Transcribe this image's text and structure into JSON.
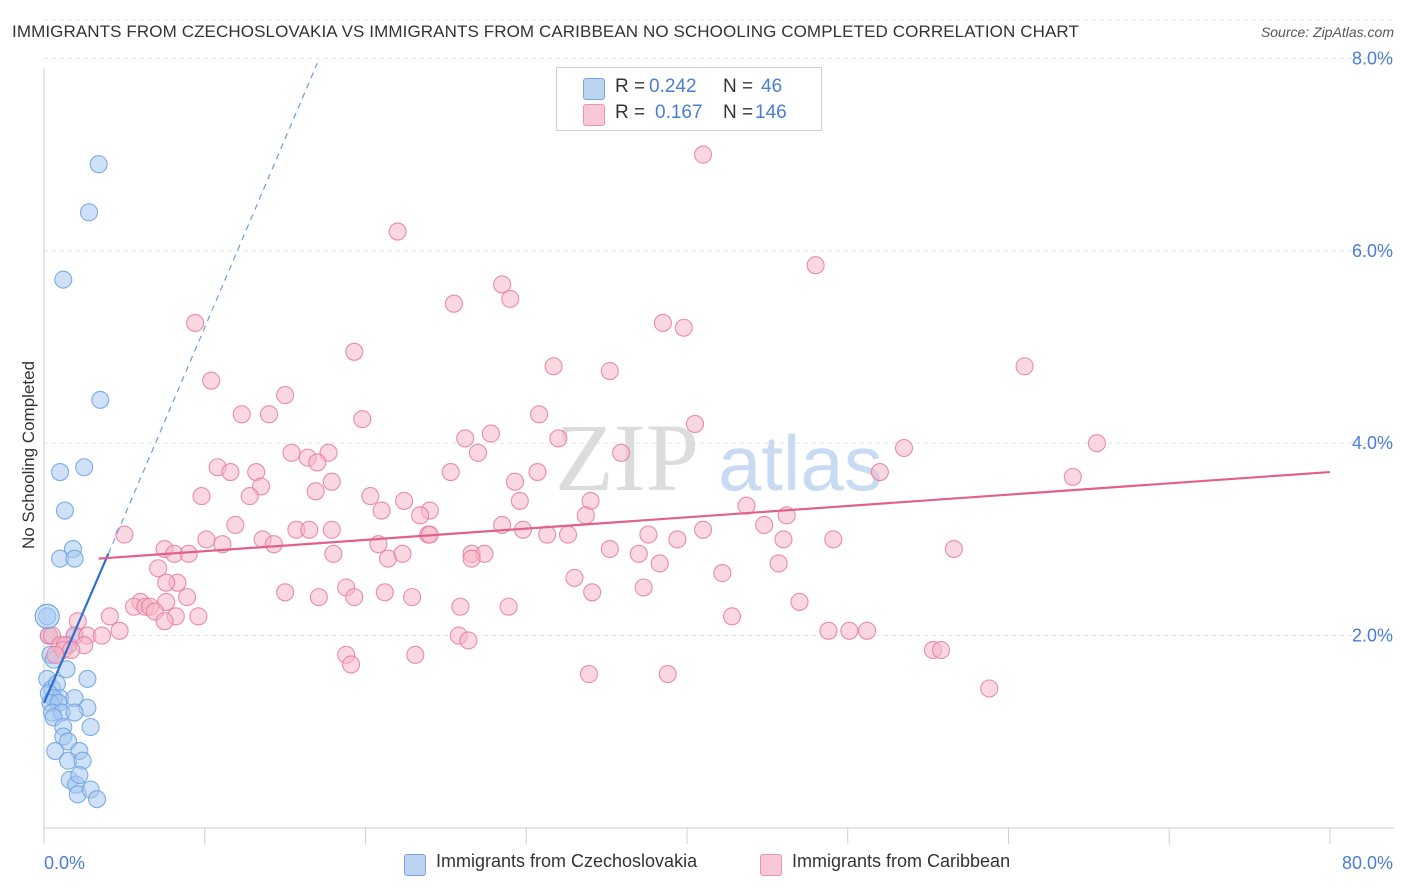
{
  "title": "IMMIGRANTS FROM CZECHOSLOVAKIA VS IMMIGRANTS FROM CARIBBEAN NO SCHOOLING COMPLETED CORRELATION CHART",
  "source": "Source: ZipAtlas.com",
  "watermark": {
    "zip": "ZIP",
    "atlas": "atlas"
  },
  "legend": {
    "rows": [
      {
        "r_label": "R =",
        "r_value": "0.242",
        "n_label": "N =",
        "n_value": "46",
        "color": "#a8c8f0"
      },
      {
        "r_label": "R =",
        "r_value": "0.167",
        "n_label": "N =",
        "n_value": "146",
        "color": "#f7b6c8"
      }
    ]
  },
  "bottom_legend": [
    {
      "label": "Immigrants from Czechoslovakia",
      "color": "#a8c8f0"
    },
    {
      "label": "Immigrants from Caribbean",
      "color": "#f7b6c8"
    }
  ],
  "chart_data": {
    "type": "scatter",
    "ylabel": "No Schooling Completed",
    "xlim": [
      0,
      80
    ],
    "ylim": [
      0,
      8.4
    ],
    "x_tick_labels": [
      {
        "value": 0,
        "label": "0.0%"
      },
      {
        "value": 80,
        "label": "80.0%"
      }
    ],
    "y_tick_labels": [
      {
        "value": 2,
        "label": "2.0%"
      },
      {
        "value": 4,
        "label": "4.0%"
      },
      {
        "value": 6,
        "label": "6.0%"
      },
      {
        "value": 8,
        "label": "8.0%"
      }
    ],
    "grid": "horizontal dashed",
    "series": [
      {
        "name": "Immigrants from Czechoslovakia",
        "color": "#6aa0e0",
        "fill": "#a8c8f0",
        "trend": {
          "x": [
            0,
            4.0
          ],
          "y": [
            1.3,
            2.85
          ],
          "dashed_extension": [
            4.0,
            17.0
          ],
          "dashed_y": [
            2.85,
            7.95
          ],
          "color": "#2f6fd0"
        },
        "points": [
          [
            3.4,
            6.9
          ],
          [
            2.8,
            6.4
          ],
          [
            1.2,
            5.7
          ],
          [
            3.5,
            4.45
          ],
          [
            1.0,
            3.7
          ],
          [
            2.5,
            3.75
          ],
          [
            1.3,
            3.3
          ],
          [
            1.8,
            2.9
          ],
          [
            1.0,
            2.8
          ],
          [
            1.9,
            2.8
          ],
          [
            0.2,
            2.2
          ],
          [
            0.3,
            2.0
          ],
          [
            1.9,
            2.0
          ],
          [
            1.5,
            1.9
          ],
          [
            0.4,
            1.8
          ],
          [
            0.6,
            1.75
          ],
          [
            0.2,
            1.55
          ],
          [
            1.4,
            1.65
          ],
          [
            2.7,
            1.55
          ],
          [
            0.5,
            1.45
          ],
          [
            0.8,
            1.5
          ],
          [
            0.3,
            1.4
          ],
          [
            1.0,
            1.35
          ],
          [
            0.6,
            1.35
          ],
          [
            1.9,
            1.35
          ],
          [
            0.4,
            1.3
          ],
          [
            0.9,
            1.3
          ],
          [
            2.7,
            1.25
          ],
          [
            0.5,
            1.2
          ],
          [
            1.1,
            1.2
          ],
          [
            1.9,
            1.2
          ],
          [
            0.6,
            1.15
          ],
          [
            1.2,
            1.05
          ],
          [
            2.9,
            1.05
          ],
          [
            1.2,
            0.95
          ],
          [
            1.5,
            0.9
          ],
          [
            2.2,
            0.8
          ],
          [
            0.7,
            0.8
          ],
          [
            1.5,
            0.7
          ],
          [
            2.4,
            0.7
          ],
          [
            1.6,
            0.5
          ],
          [
            2.0,
            0.45
          ],
          [
            2.1,
            0.35
          ],
          [
            2.9,
            0.4
          ],
          [
            3.3,
            0.3
          ],
          [
            2.2,
            0.55
          ]
        ]
      },
      {
        "name": "Immigrants from Caribbean",
        "color": "#e57a9c",
        "fill": "#f7b6c8",
        "trend": {
          "x": [
            3.4,
            80
          ],
          "y": [
            2.8,
            3.7
          ],
          "color": "#e0618d"
        },
        "points": [
          [
            41.0,
            7.0
          ],
          [
            22.0,
            6.2
          ],
          [
            48.0,
            5.85
          ],
          [
            28.5,
            5.65
          ],
          [
            29.0,
            5.5
          ],
          [
            25.5,
            5.45
          ],
          [
            9.4,
            5.25
          ],
          [
            38.5,
            5.25
          ],
          [
            39.8,
            5.2
          ],
          [
            19.3,
            4.95
          ],
          [
            31.7,
            4.8
          ],
          [
            35.2,
            4.75
          ],
          [
            61.0,
            4.8
          ],
          [
            10.4,
            4.65
          ],
          [
            15.0,
            4.5
          ],
          [
            12.3,
            4.3
          ],
          [
            14.0,
            4.3
          ],
          [
            19.8,
            4.25
          ],
          [
            30.8,
            4.3
          ],
          [
            40.5,
            4.2
          ],
          [
            27.8,
            4.1
          ],
          [
            26.2,
            4.05
          ],
          [
            32.0,
            4.05
          ],
          [
            65.5,
            4.0
          ],
          [
            53.5,
            3.95
          ],
          [
            15.4,
            3.9
          ],
          [
            17.7,
            3.9
          ],
          [
            16.4,
            3.85
          ],
          [
            35.9,
            3.9
          ],
          [
            27.0,
            3.9
          ],
          [
            17.0,
            3.8
          ],
          [
            10.8,
            3.75
          ],
          [
            11.6,
            3.7
          ],
          [
            13.2,
            3.7
          ],
          [
            25.3,
            3.7
          ],
          [
            30.7,
            3.7
          ],
          [
            52.0,
            3.7
          ],
          [
            64.0,
            3.65
          ],
          [
            17.9,
            3.6
          ],
          [
            29.3,
            3.6
          ],
          [
            13.5,
            3.55
          ],
          [
            16.9,
            3.5
          ],
          [
            12.8,
            3.45
          ],
          [
            9.8,
            3.45
          ],
          [
            20.3,
            3.45
          ],
          [
            22.4,
            3.4
          ],
          [
            29.6,
            3.4
          ],
          [
            34.0,
            3.4
          ],
          [
            43.7,
            3.35
          ],
          [
            21.0,
            3.3
          ],
          [
            24.0,
            3.3
          ],
          [
            23.4,
            3.25
          ],
          [
            33.7,
            3.25
          ],
          [
            46.2,
            3.25
          ],
          [
            11.9,
            3.15
          ],
          [
            17.9,
            3.1
          ],
          [
            15.7,
            3.1
          ],
          [
            16.5,
            3.1
          ],
          [
            28.5,
            3.15
          ],
          [
            29.8,
            3.1
          ],
          [
            41.0,
            3.1
          ],
          [
            44.8,
            3.15
          ],
          [
            31.3,
            3.05
          ],
          [
            32.6,
            3.05
          ],
          [
            37.6,
            3.05
          ],
          [
            39.4,
            3.0
          ],
          [
            13.6,
            3.0
          ],
          [
            5.0,
            3.05
          ],
          [
            10.1,
            3.0
          ],
          [
            14.3,
            2.95
          ],
          [
            20.8,
            2.95
          ],
          [
            23.9,
            3.05
          ],
          [
            24.0,
            3.05
          ],
          [
            46.0,
            3.0
          ],
          [
            49.1,
            3.0
          ],
          [
            11.1,
            2.95
          ],
          [
            7.5,
            2.9
          ],
          [
            8.1,
            2.85
          ],
          [
            9.0,
            2.85
          ],
          [
            18.0,
            2.85
          ],
          [
            21.4,
            2.8
          ],
          [
            22.3,
            2.85
          ],
          [
            26.6,
            2.85
          ],
          [
            27.4,
            2.85
          ],
          [
            35.2,
            2.9
          ],
          [
            37.0,
            2.85
          ],
          [
            38.3,
            2.75
          ],
          [
            45.7,
            2.75
          ],
          [
            56.6,
            2.9
          ],
          [
            26.6,
            2.8
          ],
          [
            7.1,
            2.7
          ],
          [
            42.2,
            2.65
          ],
          [
            33.0,
            2.6
          ],
          [
            8.3,
            2.55
          ],
          [
            7.6,
            2.55
          ],
          [
            18.8,
            2.5
          ],
          [
            21.2,
            2.45
          ],
          [
            22.9,
            2.4
          ],
          [
            34.1,
            2.45
          ],
          [
            37.3,
            2.5
          ],
          [
            15.0,
            2.45
          ],
          [
            17.1,
            2.4
          ],
          [
            8.9,
            2.4
          ],
          [
            19.3,
            2.4
          ],
          [
            6.0,
            2.35
          ],
          [
            7.6,
            2.35
          ],
          [
            5.6,
            2.3
          ],
          [
            6.3,
            2.3
          ],
          [
            6.6,
            2.3
          ],
          [
            25.9,
            2.3
          ],
          [
            28.9,
            2.3
          ],
          [
            47.0,
            2.35
          ],
          [
            6.9,
            2.25
          ],
          [
            4.1,
            2.2
          ],
          [
            8.2,
            2.2
          ],
          [
            9.6,
            2.2
          ],
          [
            7.5,
            2.15
          ],
          [
            42.8,
            2.2
          ],
          [
            50.1,
            2.05
          ],
          [
            51.2,
            2.05
          ],
          [
            48.8,
            2.05
          ],
          [
            2.1,
            2.15
          ],
          [
            1.9,
            2.0
          ],
          [
            2.7,
            2.0
          ],
          [
            3.6,
            2.0
          ],
          [
            4.7,
            2.05
          ],
          [
            0.3,
            2.0
          ],
          [
            0.5,
            2.0
          ],
          [
            1.0,
            1.9
          ],
          [
            1.3,
            1.9
          ],
          [
            2.5,
            1.9
          ],
          [
            25.8,
            2.0
          ],
          [
            26.4,
            1.95
          ],
          [
            1.2,
            1.85
          ],
          [
            1.7,
            1.85
          ],
          [
            0.7,
            1.8
          ],
          [
            18.8,
            1.8
          ],
          [
            23.1,
            1.8
          ],
          [
            55.3,
            1.85
          ],
          [
            55.8,
            1.85
          ],
          [
            19.1,
            1.7
          ],
          [
            33.9,
            1.6
          ],
          [
            38.8,
            1.6
          ],
          [
            58.8,
            1.45
          ]
        ]
      }
    ]
  }
}
